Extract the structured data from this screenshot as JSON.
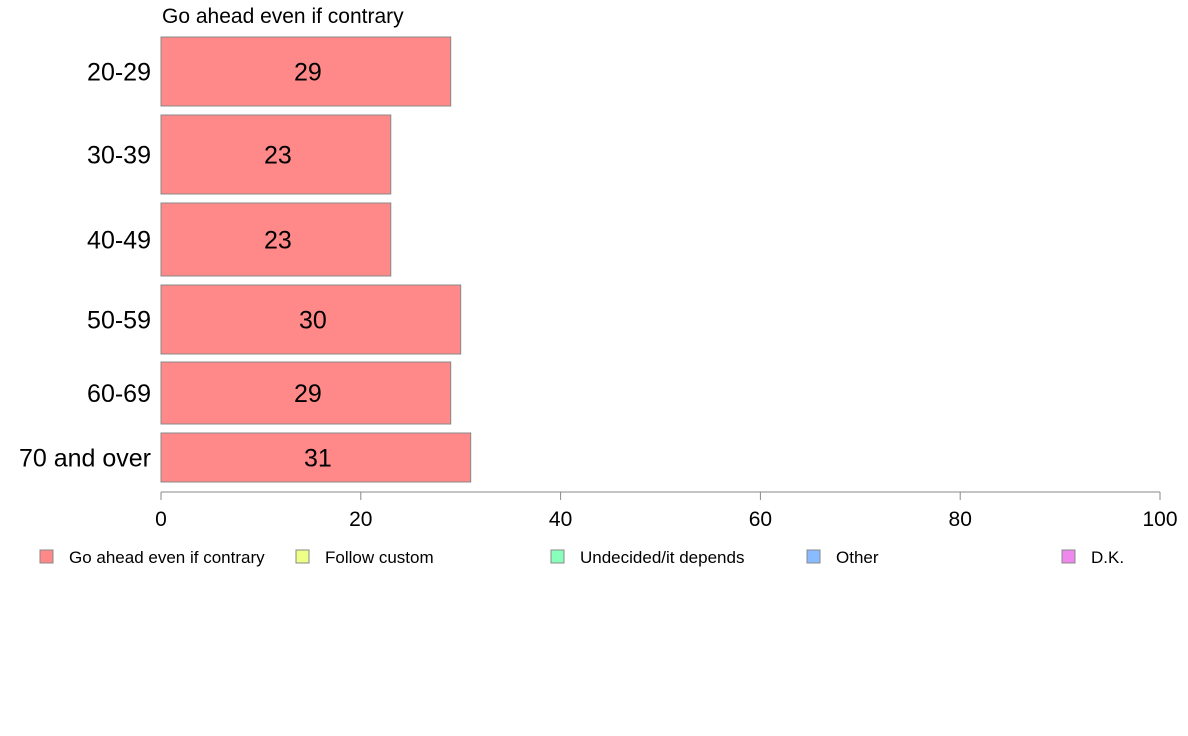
{
  "chart_data": {
    "type": "bar",
    "orientation": "horizontal",
    "title": "Go ahead even if contrary",
    "categories": [
      "20-29",
      "30-39",
      "40-49",
      "50-59",
      "60-69",
      "70 and over"
    ],
    "series": [
      {
        "name": "Go ahead even if contrary",
        "values": [
          29,
          23,
          23,
          30,
          29,
          31
        ]
      }
    ],
    "data_labels": [
      "29",
      "23",
      "23",
      "30",
      "29",
      "31"
    ],
    "xlim": [
      0,
      100
    ],
    "x_ticks": [
      0,
      20,
      40,
      60,
      80,
      100
    ],
    "grid": false,
    "legend_position": "bottom",
    "legend": [
      {
        "label": "Go ahead even if contrary",
        "color": "#ff8888"
      },
      {
        "label": "Follow custom",
        "color": "#eeff88"
      },
      {
        "label": "Undecided/it depends",
        "color": "#88ffbb"
      },
      {
        "label": "Other",
        "color": "#88bbff"
      },
      {
        "label": "D.K.",
        "color": "#ee88ee"
      }
    ],
    "bar_color": "#ff8888"
  }
}
